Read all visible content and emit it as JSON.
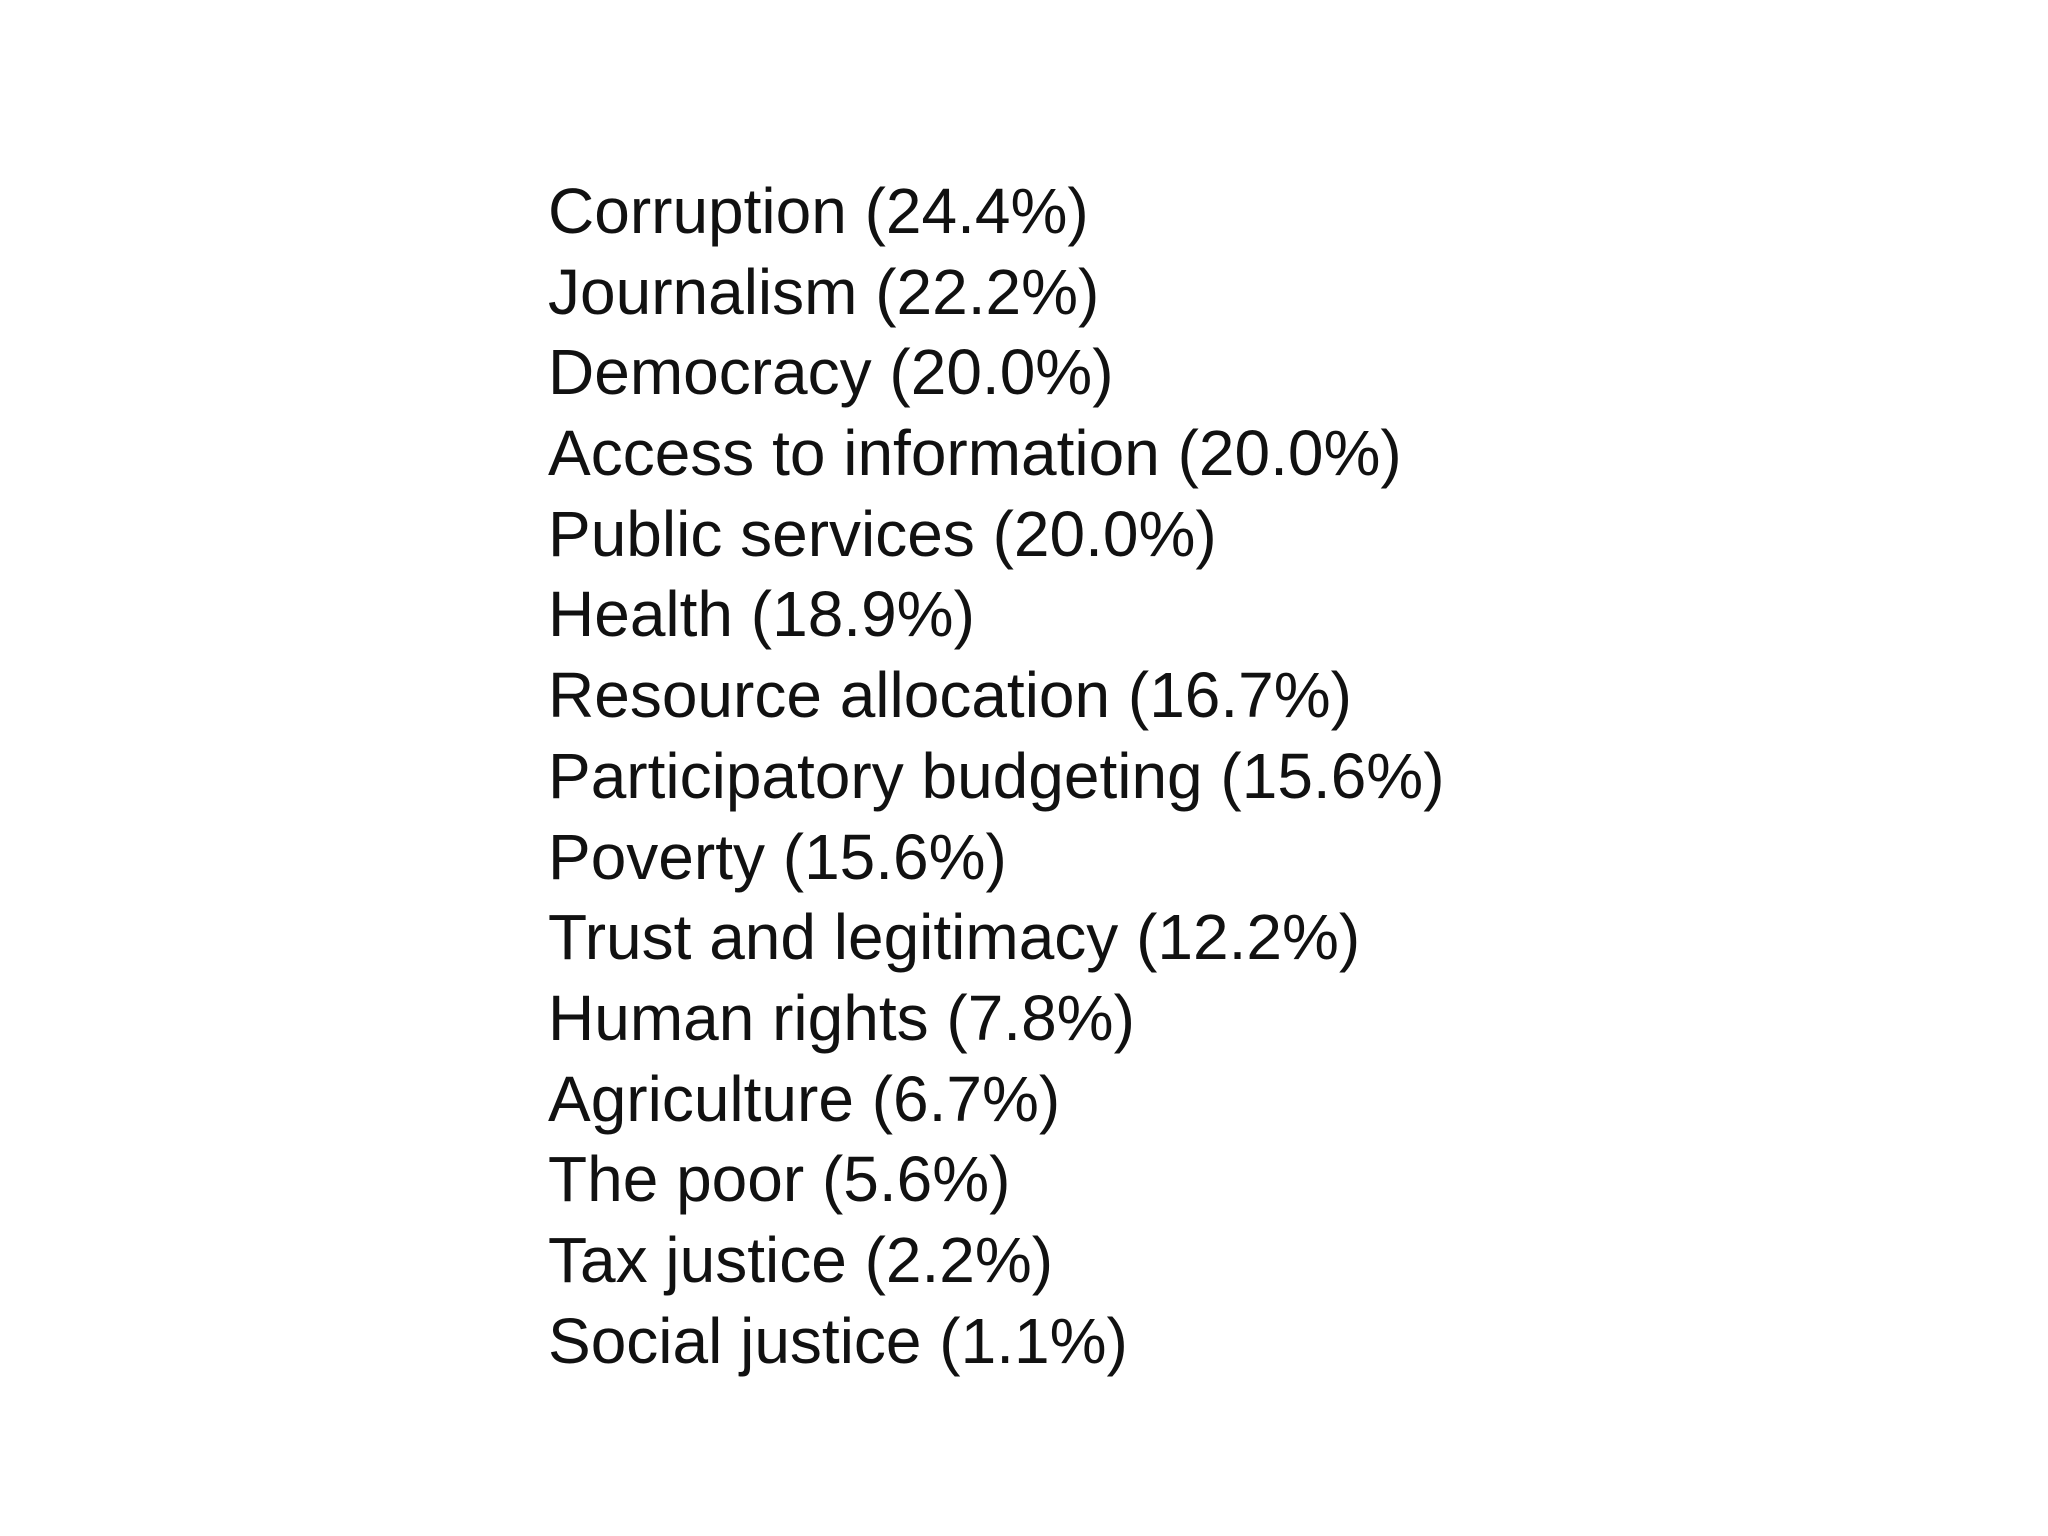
{
  "topics": [
    {
      "label": "Corruption",
      "percent": "24.4%"
    },
    {
      "label": "Journalism",
      "percent": "22.2%"
    },
    {
      "label": "Democracy",
      "percent": "20.0%"
    },
    {
      "label": "Access to information",
      "percent": "20.0%"
    },
    {
      "label": "Public services",
      "percent": "20.0%"
    },
    {
      "label": "Health",
      "percent": "18.9%"
    },
    {
      "label": "Resource allocation",
      "percent": "16.7%"
    },
    {
      "label": "Participatory budgeting",
      "percent": "15.6%"
    },
    {
      "label": "Poverty",
      "percent": "15.6%"
    },
    {
      "label": "Trust and legitimacy",
      "percent": "12.2%"
    },
    {
      "label": "Human rights",
      "percent": "7.8%"
    },
    {
      "label": "Agriculture",
      "percent": "6.7%"
    },
    {
      "label": "The poor",
      "percent": "5.6%"
    },
    {
      "label": "Tax justice",
      "percent": "2.2%"
    },
    {
      "label": "Social justice",
      "percent": "1.1%"
    }
  ]
}
